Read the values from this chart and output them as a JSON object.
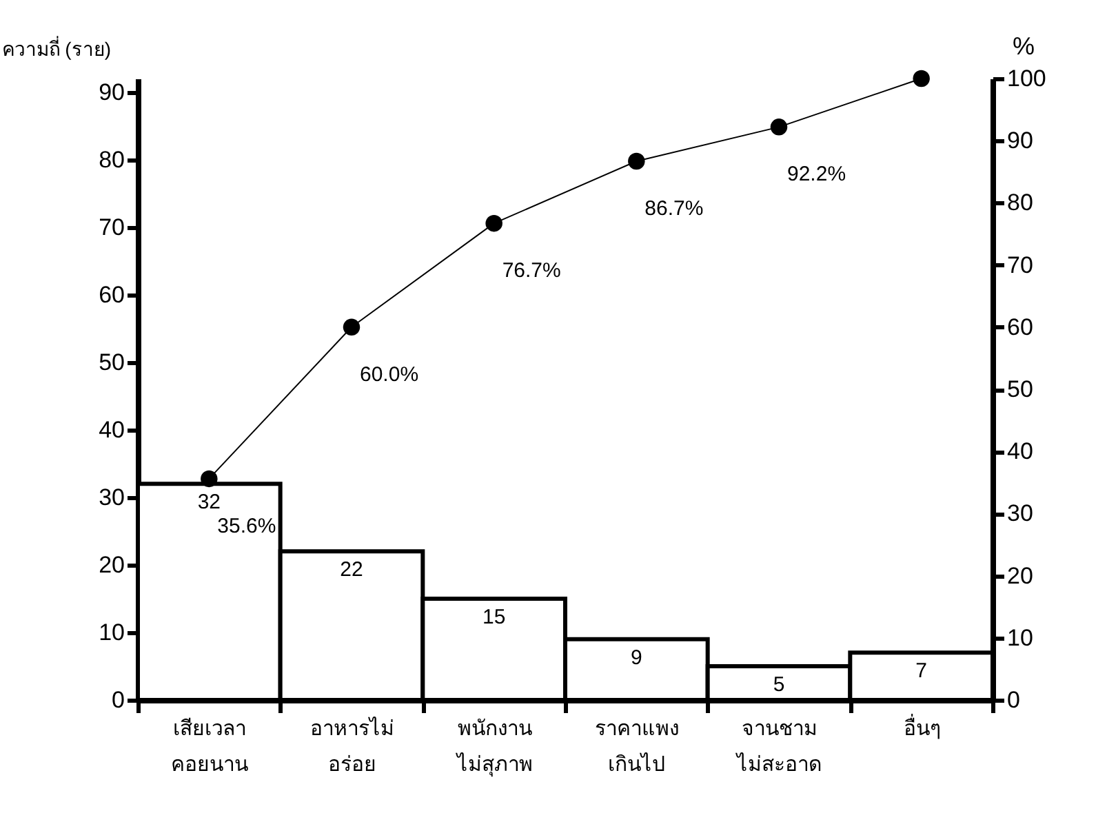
{
  "chart_data": {
    "type": "bar",
    "ylabel": "ความถี่ (ราย)",
    "y2label": "%",
    "categories": [
      "เสียเวลา คอยนาน",
      "อาหารไม่ อร่อย",
      "พนักงาน ไม่สุภาพ",
      "ราคาแพง เกินไป",
      "จานชาม ไม่สะอาด",
      "อื่นๆ"
    ],
    "series": [
      {
        "color": "#ffffff",
        "values": [
          32,
          22,
          15,
          9,
          5,
          7
        ],
        "value_labels": [
          "32",
          "22",
          "15",
          "9",
          "5",
          "7"
        ]
      },
      {
        "type": "line",
        "axis": "y2",
        "color": "#000000",
        "marker": "circle",
        "values": [
          35.6,
          60.0,
          76.7,
          86.7,
          92.2,
          100
        ],
        "value_labels": [
          "35.6%",
          "60.0%",
          "76.7%",
          "86.7%",
          "92.2%",
          null
        ]
      }
    ],
    "ylim": [
      0,
      92
    ],
    "yticks": [
      0,
      10,
      20,
      30,
      40,
      50,
      60,
      70,
      80,
      90
    ],
    "y2lim": [
      0,
      100
    ],
    "y2ticks": [
      0,
      10,
      20,
      30,
      40,
      50,
      60,
      70,
      80,
      90,
      100
    ],
    "grid": false
  }
}
